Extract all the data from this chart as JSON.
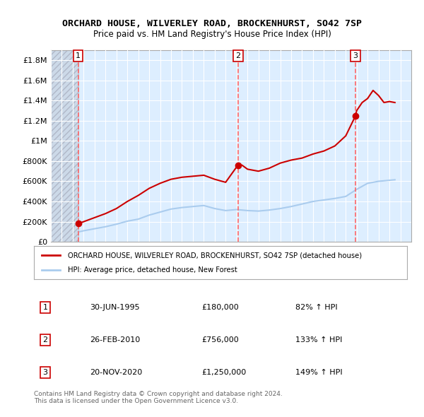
{
  "title": "ORCHARD HOUSE, WILVERLEY ROAD, BROCKENHURST, SO42 7SP",
  "subtitle": "Price paid vs. HM Land Registry's House Price Index (HPI)",
  "xlim": [
    1993,
    2026
  ],
  "ylim": [
    0,
    1900000
  ],
  "yticks": [
    0,
    200000,
    400000,
    600000,
    800000,
    1000000,
    1200000,
    1400000,
    1600000,
    1800000
  ],
  "ytick_labels": [
    "£0",
    "£200K",
    "£400K",
    "£600K",
    "£800K",
    "£1M",
    "£1.2M",
    "£1.4M",
    "£1.6M",
    "£1.8M"
  ],
  "background_plot": "#ddeeff",
  "background_hatch": "#ccd9e8",
  "hatch_end_year": 1995.5,
  "sale_dates": [
    1995.496,
    2010.144,
    2020.893
  ],
  "sale_prices": [
    180000,
    756000,
    1250000
  ],
  "sale_labels": [
    "1",
    "2",
    "3"
  ],
  "house_line_color": "#cc0000",
  "hpi_line_color": "#aaccee",
  "house_years": [
    1995.5,
    1996,
    1997,
    1998,
    1999,
    2000,
    2001,
    2002,
    2003,
    2004,
    2005,
    2006,
    2007,
    2008,
    2009,
    2010.1,
    2010.5,
    2011,
    2012,
    2013,
    2014,
    2015,
    2016,
    2017,
    2018,
    2019,
    2020,
    2020.9,
    2021,
    2021.5,
    2022,
    2022.5,
    2023,
    2023.5,
    2024,
    2024.5
  ],
  "house_values": [
    180000,
    200000,
    240000,
    280000,
    330000,
    400000,
    460000,
    530000,
    580000,
    620000,
    640000,
    650000,
    660000,
    620000,
    590000,
    756000,
    760000,
    720000,
    700000,
    730000,
    780000,
    810000,
    830000,
    870000,
    900000,
    950000,
    1050000,
    1250000,
    1300000,
    1380000,
    1420000,
    1500000,
    1450000,
    1380000,
    1390000,
    1380000
  ],
  "hpi_years": [
    1995.5,
    1996,
    1997,
    1998,
    1999,
    2000,
    2001,
    2002,
    2003,
    2004,
    2005,
    2006,
    2007,
    2008,
    2009,
    2010,
    2011,
    2012,
    2013,
    2014,
    2015,
    2016,
    2017,
    2018,
    2019,
    2020,
    2021,
    2022,
    2023,
    2024,
    2024.5
  ],
  "hpi_values": [
    98000,
    110000,
    130000,
    150000,
    175000,
    205000,
    225000,
    265000,
    295000,
    325000,
    340000,
    350000,
    360000,
    330000,
    310000,
    320000,
    310000,
    305000,
    315000,
    330000,
    350000,
    375000,
    400000,
    415000,
    430000,
    450000,
    520000,
    580000,
    600000,
    610000,
    615000
  ],
  "legend_house": "ORCHARD HOUSE, WILVERLEY ROAD, BROCKENHURST, SO42 7SP (detached house)",
  "legend_hpi": "HPI: Average price, detached house, New Forest",
  "table_rows": [
    {
      "label": "1",
      "date": "30-JUN-1995",
      "price": "£180,000",
      "hpi": "82% ↑ HPI"
    },
    {
      "label": "2",
      "date": "26-FEB-2010",
      "price": "£756,000",
      "hpi": "133% ↑ HPI"
    },
    {
      "label": "3",
      "date": "20-NOV-2020",
      "price": "£1,250,000",
      "hpi": "149% ↑ HPI"
    }
  ],
  "footer": "Contains HM Land Registry data © Crown copyright and database right 2024.\nThis data is licensed under the Open Government Licence v3.0.",
  "grid_color": "#ffffff",
  "dashed_color": "#ff6666"
}
